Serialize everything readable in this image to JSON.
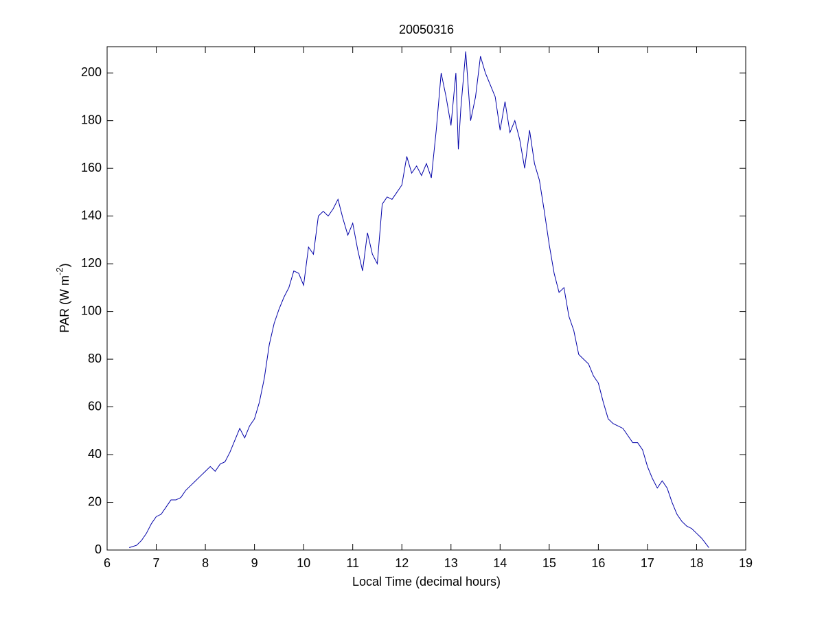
{
  "chart_data": {
    "type": "line",
    "title": "20050316",
    "xlabel": "Local Time (decimal hours)",
    "ylabel": [
      "PAR (W m",
      "-2",
      ")"
    ],
    "xlim": [
      6,
      19
    ],
    "xticks": [
      6,
      7,
      8,
      9,
      10,
      11,
      12,
      13,
      14,
      15,
      16,
      17,
      18,
      19
    ],
    "ylim": [
      0,
      211
    ],
    "yticks": [
      0,
      20,
      40,
      60,
      80,
      100,
      120,
      140,
      160,
      180,
      200
    ],
    "grid": false,
    "series": [
      {
        "color": "#0000a8",
        "x": [
          6.45,
          6.6,
          6.7,
          6.8,
          6.9,
          7.0,
          7.1,
          7.2,
          7.3,
          7.4,
          7.5,
          7.6,
          7.7,
          7.8,
          7.9,
          8.0,
          8.1,
          8.2,
          8.3,
          8.4,
          8.5,
          8.6,
          8.7,
          8.8,
          8.9,
          9.0,
          9.1,
          9.2,
          9.3,
          9.4,
          9.5,
          9.6,
          9.7,
          9.8,
          9.9,
          10.0,
          10.1,
          10.2,
          10.3,
          10.4,
          10.5,
          10.6,
          10.7,
          10.8,
          10.9,
          11.0,
          11.1,
          11.2,
          11.3,
          11.4,
          11.5,
          11.6,
          11.7,
          11.8,
          11.9,
          12.0,
          12.1,
          12.2,
          12.3,
          12.4,
          12.5,
          12.6,
          12.7,
          12.8,
          12.9,
          13.0,
          13.1,
          13.15,
          13.2,
          13.3,
          13.4,
          13.5,
          13.6,
          13.7,
          13.8,
          13.9,
          14.0,
          14.1,
          14.2,
          14.3,
          14.4,
          14.5,
          14.6,
          14.7,
          14.8,
          14.9,
          15.0,
          15.1,
          15.2,
          15.3,
          15.4,
          15.5,
          15.6,
          15.7,
          15.8,
          15.9,
          16.0,
          16.1,
          16.2,
          16.3,
          16.4,
          16.5,
          16.6,
          16.7,
          16.8,
          16.9,
          17.0,
          17.1,
          17.2,
          17.3,
          17.4,
          17.5,
          17.6,
          17.7,
          17.8,
          17.9,
          18.0,
          18.1,
          18.25
        ],
        "values": [
          1,
          2,
          4,
          7,
          11,
          14,
          15,
          18,
          21,
          21,
          22,
          25,
          27,
          29,
          31,
          33,
          35,
          33,
          36,
          37,
          41,
          46,
          51,
          47,
          52,
          55,
          62,
          72,
          86,
          95,
          101,
          106,
          110,
          117,
          116,
          111,
          127,
          124,
          140,
          142,
          140,
          143,
          147,
          139,
          132,
          137,
          126,
          117,
          133,
          124,
          120,
          145,
          148,
          147,
          150,
          153,
          165,
          158,
          161,
          157,
          162,
          156,
          176,
          200,
          190,
          178,
          200,
          168,
          185,
          209,
          180,
          190,
          207,
          200,
          195,
          190,
          176,
          188,
          175,
          180,
          172,
          160,
          176,
          162,
          155,
          142,
          128,
          116,
          108,
          110,
          98,
          92,
          82,
          80,
          78,
          73,
          70,
          62,
          55,
          53,
          52,
          51,
          48,
          45,
          45,
          42,
          35,
          30,
          26,
          29,
          26,
          20,
          15,
          12,
          10,
          9,
          7,
          5,
          1
        ]
      }
    ]
  }
}
